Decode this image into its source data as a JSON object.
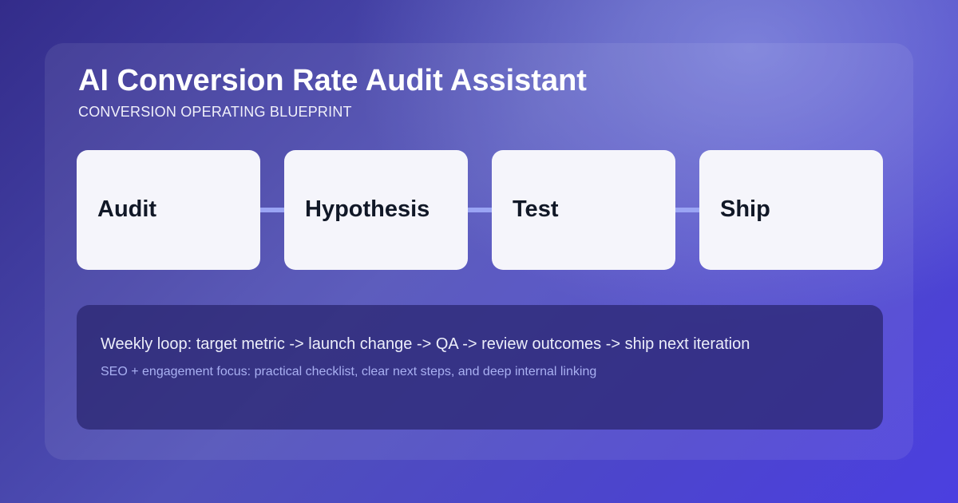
{
  "header": {
    "title": "AI Conversion Rate Audit Assistant",
    "subtitle": "CONVERSION OPERATING BLUEPRINT"
  },
  "steps": [
    {
      "label": "Audit"
    },
    {
      "label": "Hypothesis"
    },
    {
      "label": "Test"
    },
    {
      "label": "Ship"
    }
  ],
  "panel": {
    "loop": "Weekly loop: target metric -> launch change -> QA -> review outcomes -> ship next iteration",
    "focus": "SEO + engagement focus: practical checklist, clear next steps, and deep internal linking"
  },
  "colors": {
    "accent": "#9aa4f4",
    "card": "#f5f5fb",
    "text": "#111827"
  }
}
